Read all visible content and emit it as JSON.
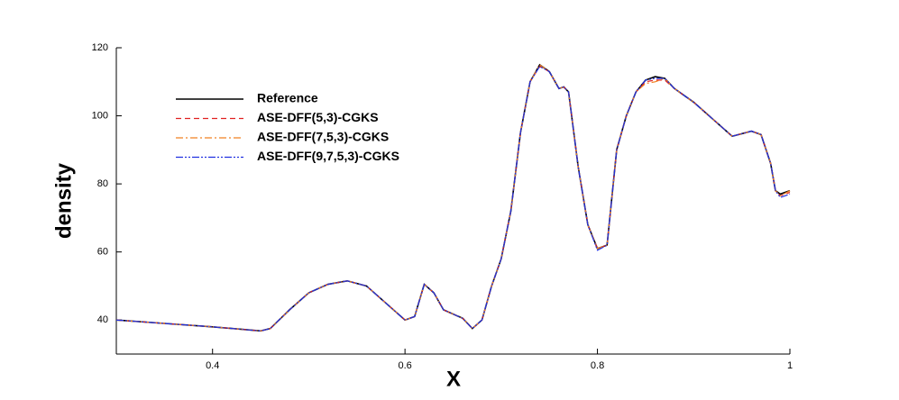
{
  "chart_data": {
    "type": "line",
    "x_label": "X",
    "y_label": "density",
    "xlim": [
      0.3,
      1
    ],
    "xticks": [
      0.4,
      0.6,
      0.8,
      1
    ],
    "ylim": [
      30,
      120
    ],
    "yticks": [
      40,
      60,
      80,
      100,
      120
    ],
    "legend": "upper-left",
    "x": [
      0.3,
      0.35,
      0.4,
      0.45,
      0.46,
      0.48,
      0.5,
      0.52,
      0.54,
      0.56,
      0.58,
      0.6,
      0.61,
      0.62,
      0.63,
      0.64,
      0.66,
      0.67,
      0.68,
      0.69,
      0.7,
      0.71,
      0.72,
      0.73,
      0.74,
      0.75,
      0.76,
      0.765,
      0.77,
      0.78,
      0.79,
      0.8,
      0.81,
      0.82,
      0.83,
      0.84,
      0.85,
      0.86,
      0.87,
      0.88,
      0.9,
      0.92,
      0.94,
      0.96,
      0.97,
      0.98,
      0.985,
      0.99,
      1.0
    ],
    "series": [
      {
        "name": "Reference",
        "color": "#000000",
        "dash": "none",
        "values": [
          40,
          39,
          38,
          36.8,
          37.5,
          43,
          48,
          50.5,
          51.5,
          50,
          45,
          40,
          41,
          50.5,
          48,
          43,
          40.5,
          37.5,
          40,
          50,
          58,
          72,
          95,
          110,
          115,
          113,
          108,
          108.5,
          107,
          85,
          68,
          61,
          62,
          90,
          100,
          107,
          110.5,
          111.5,
          111,
          108,
          104,
          99,
          94,
          95.5,
          94.5,
          86,
          78,
          77,
          78
        ]
      },
      {
        "name": "ASE-DFF(5,3)-CGKS",
        "color": "#e02020",
        "dash": "6,4",
        "values": [
          40,
          39,
          38,
          36.8,
          37.5,
          43,
          48,
          50.5,
          51.5,
          50,
          45,
          40,
          41,
          50.5,
          48,
          43,
          40.5,
          37.5,
          40,
          50,
          58,
          72,
          95,
          110,
          114.5,
          113,
          108,
          108.5,
          107,
          85,
          68,
          61,
          62,
          90,
          100,
          107,
          110,
          110.5,
          110.5,
          108,
          104,
          99,
          94,
          95.5,
          94.5,
          86,
          78,
          76.5,
          77.5
        ]
      },
      {
        "name": "ASE-DFF(7,5,3)-CGKS",
        "color": "#f08020",
        "dash": "8,3,2,3",
        "values": [
          40,
          39,
          38,
          36.8,
          37.5,
          43,
          48,
          50.5,
          51.5,
          50,
          45,
          40,
          41,
          50.5,
          48,
          43,
          40.5,
          37.5,
          40,
          50,
          58,
          72,
          95,
          110,
          115,
          113,
          108,
          108.5,
          107,
          85,
          68,
          61,
          62,
          90,
          100,
          107,
          109.5,
          110,
          111,
          108,
          104,
          99,
          94,
          95.5,
          94.5,
          86,
          78,
          76.5,
          78
        ]
      },
      {
        "name": "ASE-DFF(9,7,5,3)-CGKS",
        "color": "#2030e0",
        "dash": "8,2,2,2,2,2",
        "values": [
          40,
          39,
          38,
          36.8,
          37.5,
          43,
          48,
          50.5,
          51.5,
          50,
          45,
          40,
          41,
          50.5,
          48,
          43,
          40.5,
          37.5,
          40,
          50,
          58,
          72,
          95,
          110,
          114.5,
          113,
          108,
          108.5,
          107,
          85,
          68,
          60.5,
          62,
          90,
          100,
          107,
          110.5,
          111,
          111,
          108,
          104,
          99,
          94,
          95.5,
          94.5,
          86,
          78,
          76,
          77
        ]
      }
    ]
  }
}
